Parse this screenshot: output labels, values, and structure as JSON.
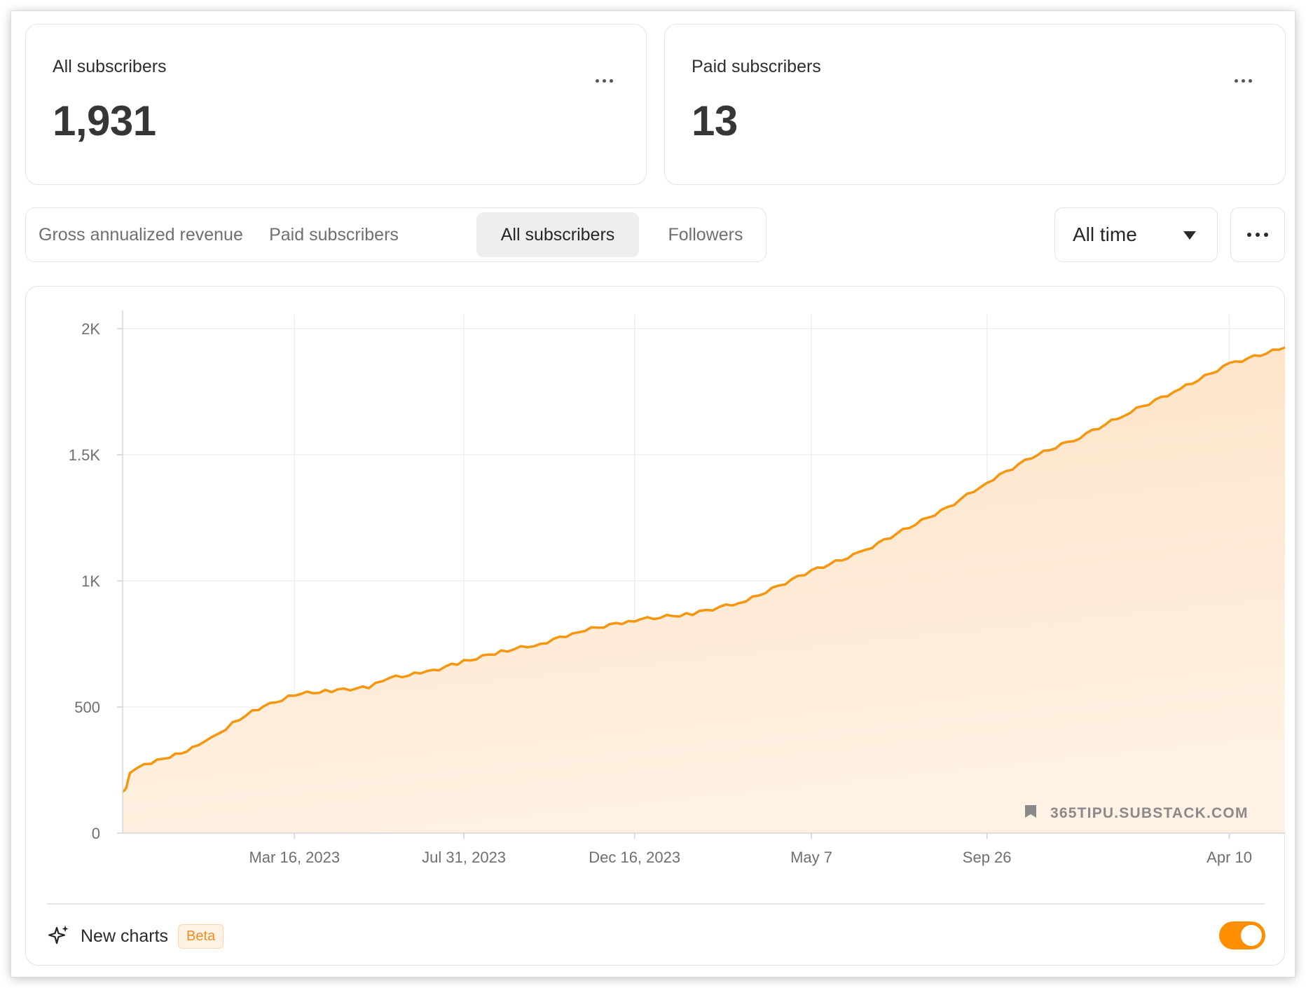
{
  "stats": {
    "all": {
      "label": "All subscribers",
      "value": "1,931"
    },
    "paid": {
      "label": "Paid subscribers",
      "value": "13"
    }
  },
  "tabs": [
    {
      "label": "Gross annualized revenue",
      "active": false
    },
    {
      "label": "Paid subscribers",
      "active": false
    },
    {
      "label": "All subscribers",
      "active": true
    },
    {
      "label": "Followers",
      "active": false
    }
  ],
  "range": {
    "selected": "All time"
  },
  "footer": {
    "new_charts_label": "New charts",
    "beta_label": "Beta",
    "toggle_on": true
  },
  "watermark": "365TIPU.SUBSTACK.COM",
  "colors": {
    "accent": "#ff8f00",
    "line": "#f5960f",
    "area_top": "#fde1c3",
    "area_bottom": "#fff1e3",
    "grid": "#ececec",
    "axis_text": "#6f6f6f"
  },
  "chart_data": {
    "type": "area",
    "title": "",
    "xlabel": "",
    "ylabel": "",
    "x_ticks": [
      "Mar 16, 2023",
      "Jul 31, 2023",
      "Dec 16, 2023",
      "May 7",
      "Sep 26",
      "Apr 10"
    ],
    "y_ticks": [
      "0",
      "500",
      "1K",
      "1.5K",
      "2K"
    ],
    "ylim": [
      0,
      2000
    ],
    "grid": true,
    "series": [
      {
        "x": [
          "2022-10-28",
          "2022-10-31",
          "2022-11-03",
          "2022-11-20",
          "2022-12-05",
          "2022-12-28",
          "2023-01-08",
          "2023-01-25",
          "2023-02-10",
          "2023-03-01",
          "2023-03-16",
          "2023-04-15",
          "2023-05-15",
          "2023-06-01",
          "2023-07-01",
          "2023-07-31",
          "2023-08-30",
          "2023-10-01",
          "2023-11-01",
          "2023-12-16",
          "2024-02-01",
          "2024-03-15",
          "2024-05-07",
          "2024-06-15",
          "2024-07-20",
          "2024-08-25",
          "2024-09-26",
          "2024-11-01",
          "2024-12-10",
          "2025-01-20",
          "2025-03-01",
          "2025-04-10",
          "2025-05-25"
        ],
        "values": [
          165,
          185,
          245,
          280,
          300,
          345,
          375,
          435,
          485,
          520,
          550,
          565,
          578,
          615,
          638,
          680,
          720,
          750,
          800,
          845,
          870,
          920,
          1040,
          1110,
          1200,
          1290,
          1390,
          1490,
          1570,
          1670,
          1760,
          1860,
          1925
        ]
      }
    ]
  }
}
